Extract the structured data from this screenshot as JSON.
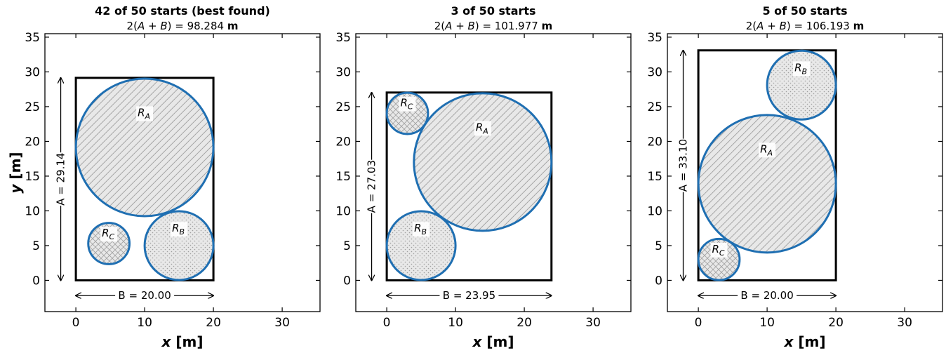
{
  "chart_data": [
    {
      "type": "scatter",
      "title": "42 of 50 starts (best found)",
      "subtitle": "2(A + B) = 98.284 m",
      "xlabel": "x [m]",
      "ylabel": "y [m]",
      "xlim": [
        -4.5,
        35.5
      ],
      "ylim": [
        -4.5,
        35.5
      ],
      "xticks": [
        0,
        10,
        20,
        30
      ],
      "yticks": [
        0,
        5,
        10,
        15,
        20,
        25,
        30,
        35
      ],
      "rectangle": {
        "B": 20.0,
        "A": 29.14
      },
      "dim_labels": {
        "A": "A = 29.14",
        "B": "B = 20.00"
      },
      "circles": [
        {
          "label": "R_A",
          "label_main": "R",
          "label_sub": "A",
          "cx": 10.0,
          "cy": 19.14,
          "r": 10.0,
          "pattern": "diagonal"
        },
        {
          "label": "R_B",
          "label_main": "R",
          "label_sub": "B",
          "cx": 15.0,
          "cy": 5.0,
          "r": 5.0,
          "pattern": "dots"
        },
        {
          "label": "R_C",
          "label_main": "R",
          "label_sub": "C",
          "cx": 4.8,
          "cy": 5.3,
          "r": 3.0,
          "pattern": "cross"
        }
      ]
    },
    {
      "type": "scatter",
      "title": "3 of 50 starts",
      "subtitle": "2(A + B) = 101.977 m",
      "xlabel": "x [m]",
      "ylabel": "",
      "xlim": [
        -4.5,
        35.5
      ],
      "ylim": [
        -4.5,
        35.5
      ],
      "xticks": [
        0,
        10,
        20,
        30
      ],
      "yticks": [
        0,
        5,
        10,
        15,
        20,
        25,
        30,
        35
      ],
      "rectangle": {
        "B": 23.95,
        "A": 27.03
      },
      "dim_labels": {
        "A": "A = 27.03",
        "B": "B = 23.95"
      },
      "circles": [
        {
          "label": "R_A",
          "label_main": "R",
          "label_sub": "A",
          "cx": 13.95,
          "cy": 17.03,
          "r": 10.0,
          "pattern": "diagonal"
        },
        {
          "label": "R_B",
          "label_main": "R",
          "label_sub": "B",
          "cx": 5.0,
          "cy": 5.0,
          "r": 5.0,
          "pattern": "dots"
        },
        {
          "label": "R_C",
          "label_main": "R",
          "label_sub": "C",
          "cx": 3.0,
          "cy": 24.03,
          "r": 3.0,
          "pattern": "cross"
        }
      ]
    },
    {
      "type": "scatter",
      "title": "5 of 50 starts",
      "subtitle": "2(A + B) = 106.193 m",
      "xlabel": "x [m]",
      "ylabel": "",
      "xlim": [
        -4.5,
        35.5
      ],
      "ylim": [
        -4.5,
        35.5
      ],
      "xticks": [
        0,
        10,
        20,
        30
      ],
      "yticks": [
        0,
        5,
        10,
        15,
        20,
        25,
        30,
        35
      ],
      "rectangle": {
        "B": 20.0,
        "A": 33.1
      },
      "dim_labels": {
        "A": "A = 33.10",
        "B": "B = 20.00"
      },
      "circles": [
        {
          "label": "R_A",
          "label_main": "R",
          "label_sub": "A",
          "cx": 10.0,
          "cy": 13.9,
          "r": 10.0,
          "pattern": "diagonal"
        },
        {
          "label": "R_B",
          "label_main": "R",
          "label_sub": "B",
          "cx": 15.0,
          "cy": 28.1,
          "r": 5.0,
          "pattern": "dots"
        },
        {
          "label": "R_C",
          "label_main": "R",
          "label_sub": "C",
          "cx": 3.0,
          "cy": 3.0,
          "r": 3.0,
          "pattern": "cross"
        }
      ]
    }
  ],
  "colors": {
    "circle_stroke": "#1f6fb2",
    "circle_fill": "#e8e8e8",
    "hatch": "#9a9a9a",
    "rectangle": "#000000"
  }
}
